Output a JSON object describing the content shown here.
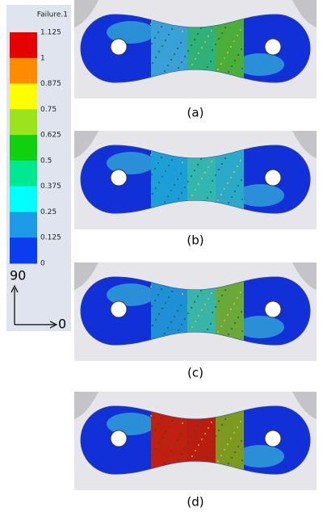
{
  "legend": {
    "title": "Failure.1",
    "ticks": [
      1.125,
      1,
      0.875,
      0.75,
      0.625,
      0.5,
      0.375,
      0.25,
      0.125,
      0
    ],
    "colors": [
      "#e60000",
      "#ff8c00",
      "#ffff00",
      "#9be31b",
      "#10d010",
      "#00e890",
      "#00ffff",
      "#1e9be6",
      "#0a3cf0"
    ]
  },
  "axes": {
    "vertical": "90",
    "horizontal": "0"
  },
  "panels": [
    {
      "caption": "(a)"
    },
    {
      "caption": "(b)"
    },
    {
      "caption": "(c)"
    },
    {
      "caption": "(d)"
    }
  ]
}
